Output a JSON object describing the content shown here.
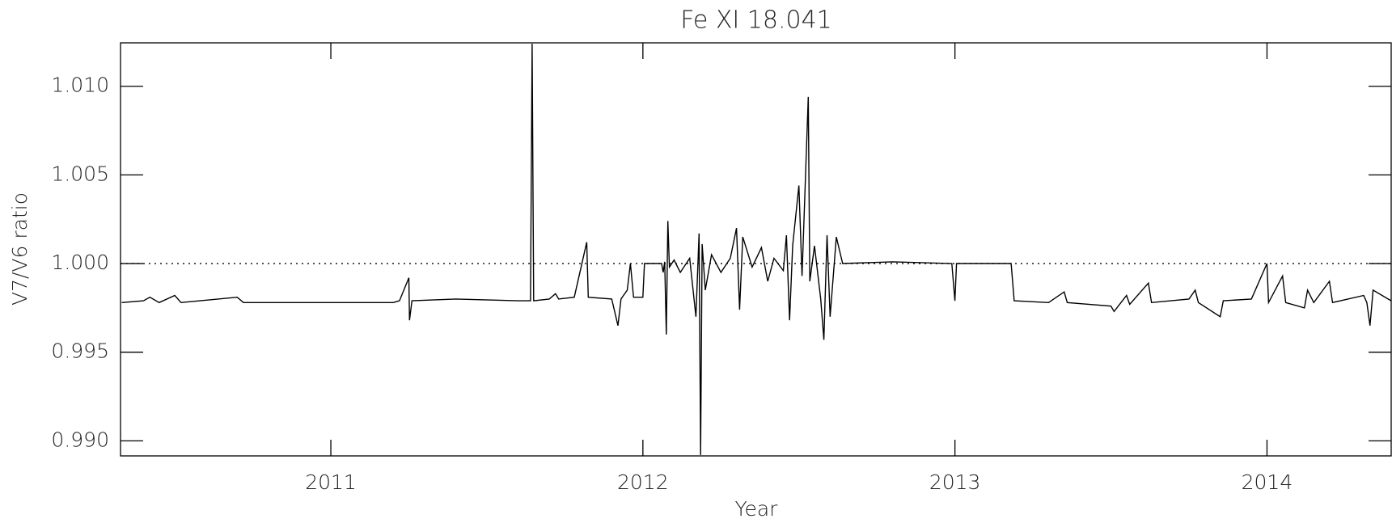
{
  "chart_data": {
    "type": "line",
    "title": "Fe XI 18.041",
    "x_label": "Year",
    "y_label": "V7/V6 ratio",
    "x": [
      2010.33,
      2010.4,
      2010.42,
      2010.45,
      2010.5,
      2010.52,
      2010.7,
      2010.72,
      2010.9,
      2011.0,
      2011.2,
      2011.22,
      2011.25,
      2011.252,
      2011.26,
      2011.4,
      2011.6,
      2011.64,
      2011.645,
      2011.65,
      2011.7,
      2011.72,
      2011.73,
      2011.78,
      2011.82,
      2011.825,
      2011.9,
      2011.92,
      2011.93,
      2011.95,
      2011.96,
      2011.97,
      2012.0,
      2012.005,
      2012.06,
      2012.065,
      2012.07,
      2012.075,
      2012.08,
      2012.085,
      2012.1,
      2012.12,
      2012.15,
      2012.17,
      2012.18,
      2012.185,
      2012.19,
      2012.2,
      2012.22,
      2012.25,
      2012.28,
      2012.3,
      2012.31,
      2012.32,
      2012.35,
      2012.38,
      2012.4,
      2012.42,
      2012.45,
      2012.46,
      2012.47,
      2012.48,
      2012.5,
      2012.51,
      2012.53,
      2012.535,
      2012.55,
      2012.57,
      2012.58,
      2012.59,
      2012.6,
      2012.62,
      2012.64,
      2012.8,
      2012.99,
      2013.0,
      2013.005,
      2013.18,
      2013.19,
      2013.3,
      2013.35,
      2013.36,
      2013.5,
      2013.51,
      2013.55,
      2013.56,
      2013.62,
      2013.63,
      2013.75,
      2013.77,
      2013.78,
      2013.85,
      2013.86,
      2013.95,
      2014.0,
      2014.005,
      2014.05,
      2014.06,
      2014.12,
      2014.13,
      2014.15,
      2014.2,
      2014.21,
      2014.31,
      2014.32,
      2014.33,
      2014.34,
      2014.398
    ],
    "series": [
      {
        "name": "V7/V6",
        "color": "#000000",
        "values": [
          0.9978,
          0.9979,
          0.9981,
          0.9978,
          0.9982,
          0.9978,
          0.9981,
          0.9978,
          0.9978,
          0.9978,
          0.9978,
          0.9979,
          0.9992,
          0.9968,
          0.9979,
          0.998,
          0.9979,
          0.9979,
          1.0124,
          0.9979,
          0.998,
          0.9983,
          0.998,
          0.9981,
          1.0012,
          0.9981,
          0.998,
          0.9965,
          0.998,
          0.9985,
          1.0,
          0.9981,
          0.9981,
          1.0,
          1.0,
          0.9995,
          1.0001,
          0.996,
          1.0024,
          0.9998,
          1.0002,
          0.9995,
          1.0003,
          0.997,
          1.0017,
          0.9892,
          1.0011,
          0.9985,
          1.0005,
          0.9995,
          1.0003,
          1.002,
          0.9974,
          1.0015,
          0.9998,
          1.0009,
          0.999,
          1.0003,
          0.9996,
          1.0016,
          0.9968,
          1.001,
          1.0044,
          0.9993,
          1.0094,
          0.999,
          1.001,
          0.998,
          0.9957,
          1.0016,
          0.997,
          1.0015,
          1.0,
          1.0001,
          1.0,
          0.9979,
          1.0,
          1.0,
          0.9979,
          0.9978,
          0.9984,
          0.9978,
          0.9976,
          0.9973,
          0.9982,
          0.9977,
          0.9989,
          0.9978,
          0.998,
          0.9985,
          0.9978,
          0.997,
          0.9979,
          0.998,
          1.0,
          0.9978,
          0.9993,
          0.9978,
          0.9975,
          0.9985,
          0.9978,
          0.999,
          0.9978,
          0.9982,
          0.9978,
          0.9965,
          0.9985,
          0.9979
        ]
      }
    ],
    "xlim": [
      2010.326,
      2014.398
    ],
    "ylim": [
      0.98915,
      1.01245
    ],
    "xticks": [
      2011,
      2012,
      2013,
      2014
    ],
    "yticks": [
      {
        "value": 0.99,
        "label": "0.990"
      },
      {
        "value": 0.995,
        "label": "0.995"
      },
      {
        "value": 1.0,
        "label": "1.000"
      },
      {
        "value": 1.005,
        "label": "1.005"
      },
      {
        "value": 1.01,
        "label": "1.010"
      }
    ],
    "reference_line": 1.0
  }
}
